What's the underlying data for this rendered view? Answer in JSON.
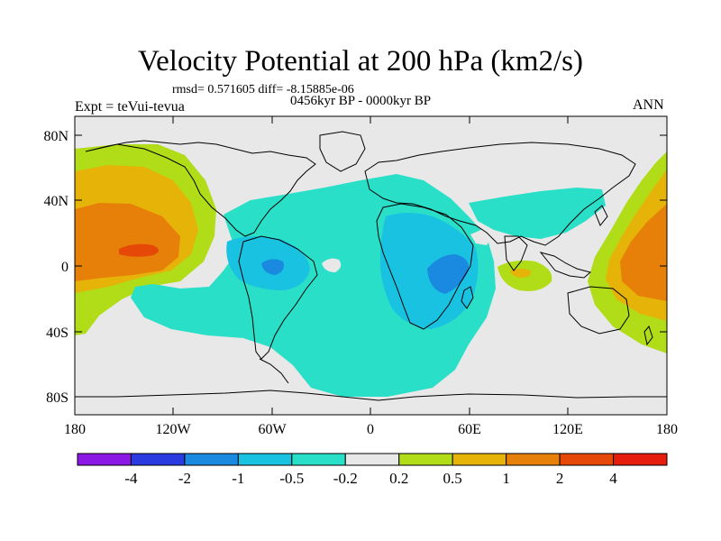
{
  "title": "Velocity Potential at 200 hPa (km2/s)",
  "stats": "rmsd= 0.571605 diff= -8.15885e-06",
  "experiment": "Expt = teVui-tevua",
  "period": "0456kyr BP - 0000kyr BP",
  "season": "ANN",
  "axes": {
    "y_ticks": [
      "80N",
      "40N",
      "0",
      "40S",
      "80S"
    ],
    "x_ticks": [
      "180",
      "120W",
      "60W",
      "0",
      "60E",
      "120E",
      "180"
    ]
  },
  "colorbar": {
    "colors": [
      "#8c18e6",
      "#2a3ce0",
      "#1a8ae0",
      "#18c2e0",
      "#2adfc8",
      "#e8e8e8",
      "#b0dc18",
      "#e6b408",
      "#e68008",
      "#e64808",
      "#e61c0c"
    ],
    "labels": [
      "-4",
      "-2",
      "-1",
      "-0.5",
      "-0.2",
      "0.2",
      "0.5",
      "1",
      "2",
      "4"
    ]
  },
  "legend_colors": {
    "neutral": "#e8e8e8",
    "neg_light": "#2adfc8",
    "neg_mid": "#18c2e0",
    "neg_strong": "#1a8ae0",
    "pos_light": "#b0dc18",
    "pos_mid": "#e6b408",
    "pos_strong": "#e68008",
    "pos_max": "#e64808"
  }
}
